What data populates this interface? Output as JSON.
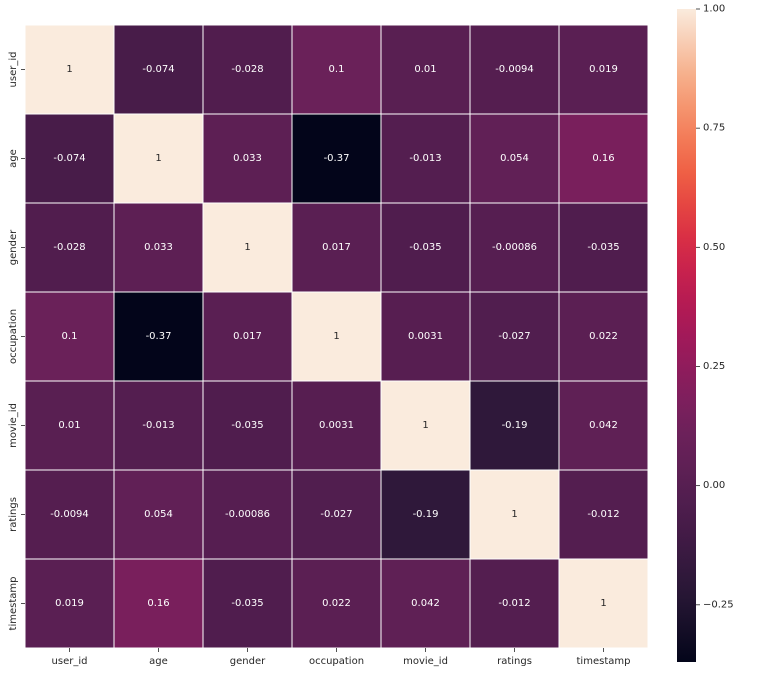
{
  "chart_data": {
    "type": "heatmap",
    "title": "",
    "xlabel": "",
    "ylabel": "",
    "x_categories": [
      "user_id",
      "age",
      "gender",
      "occupation",
      "movie_id",
      "ratings",
      "timestamp"
    ],
    "y_categories": [
      "user_id",
      "age",
      "gender",
      "occupation",
      "movie_id",
      "ratings",
      "timestamp"
    ],
    "values": [
      [
        1,
        -0.074,
        -0.028,
        0.1,
        0.01,
        -0.0094,
        0.019
      ],
      [
        -0.074,
        1,
        0.033,
        -0.37,
        -0.013,
        0.054,
        0.16
      ],
      [
        -0.028,
        0.033,
        1,
        0.017,
        -0.035,
        -0.00086,
        -0.035
      ],
      [
        0.1,
        -0.37,
        0.017,
        1,
        0.0031,
        -0.027,
        0.022
      ],
      [
        0.01,
        -0.013,
        -0.035,
        0.0031,
        1,
        -0.19,
        0.042
      ],
      [
        -0.0094,
        0.054,
        -0.00086,
        -0.027,
        -0.19,
        1,
        -0.012
      ],
      [
        0.019,
        0.16,
        -0.035,
        0.022,
        0.042,
        -0.012,
        1
      ]
    ],
    "value_labels": [
      [
        "1",
        "-0.074",
        "-0.028",
        "0.1",
        "0.01",
        "-0.0094",
        "0.019"
      ],
      [
        "-0.074",
        "1",
        "0.033",
        "-0.37",
        "-0.013",
        "0.054",
        "0.16"
      ],
      [
        "-0.028",
        "0.033",
        "1",
        "0.017",
        "-0.035",
        "-0.00086",
        "-0.035"
      ],
      [
        "0.1",
        "-0.37",
        "0.017",
        "1",
        "0.0031",
        "-0.027",
        "0.022"
      ],
      [
        "0.01",
        "-0.013",
        "-0.035",
        "0.0031",
        "1",
        "-0.19",
        "0.042"
      ],
      [
        "-0.0094",
        "0.054",
        "-0.00086",
        "-0.027",
        "-0.19",
        "1",
        "-0.012"
      ],
      [
        "0.019",
        "0.16",
        "-0.035",
        "0.022",
        "0.042",
        "-0.012",
        "1"
      ]
    ],
    "colormap": "rocket",
    "vmin": -0.37,
    "vmax": 1.0,
    "colorbar": {
      "ticks": [
        -0.25,
        0,
        0.25,
        0.5,
        0.75,
        1.0
      ],
      "tick_labels": [
        "−0.25",
        "0.00",
        "0.25",
        "0.50",
        "0.75",
        "1.00"
      ]
    },
    "grid_lines": "white",
    "square_cells": true
  }
}
